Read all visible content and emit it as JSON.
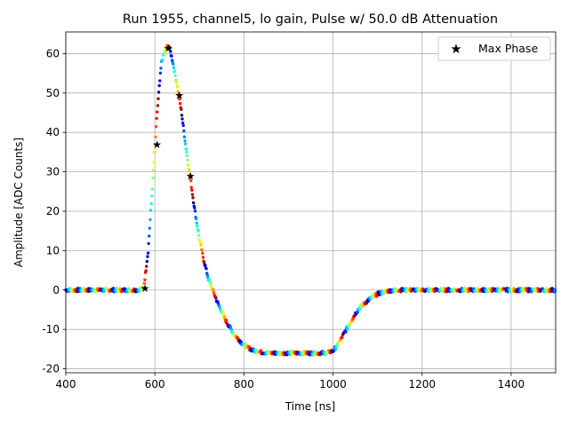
{
  "chart_data": {
    "type": "scatter",
    "title": "Run 1955, channel5, lo gain, Pulse w/ 50.0 dB Attenuation",
    "xlabel": "Time [ns]",
    "ylabel": "Amplitude [ADC Counts]",
    "xlim": [
      400,
      1500
    ],
    "ylim": [
      -21,
      65.5
    ],
    "xticks": [
      400,
      600,
      800,
      1000,
      1200,
      1400
    ],
    "yticks": [
      -20,
      -10,
      0,
      10,
      20,
      30,
      40,
      50,
      60
    ],
    "grid": true,
    "colormap": "jet",
    "legend": {
      "position": "top-right",
      "entries": [
        "Max Phase"
      ]
    },
    "pulse_samples": {
      "x": [
        400,
        420,
        440,
        460,
        480,
        500,
        520,
        540,
        560,
        575,
        585,
        595,
        605,
        615,
        625,
        632,
        640,
        650,
        660,
        670,
        680,
        690,
        700,
        710,
        720,
        730,
        740,
        760,
        780,
        800,
        820,
        840,
        860,
        880,
        900,
        920,
        940,
        960,
        980,
        1000,
        1010,
        1020,
        1030,
        1040,
        1050,
        1060,
        1080,
        1100,
        1120,
        1140,
        1160,
        1180,
        1200,
        1250,
        1300,
        1350,
        1400,
        1450,
        1500
      ],
      "y": [
        0,
        0,
        0,
        0,
        0,
        0,
        0,
        0,
        0,
        0.5,
        10,
        27,
        45,
        58,
        61.5,
        62,
        58,
        52,
        45,
        36,
        28,
        20,
        13,
        7.5,
        3,
        0,
        -3,
        -8,
        -11.5,
        -14,
        -15.3,
        -15.8,
        -16,
        -16,
        -16,
        -16,
        -16,
        -16,
        -16,
        -15.5,
        -14,
        -12,
        -10,
        -8,
        -6,
        -4.5,
        -2.5,
        -1,
        -0.3,
        0,
        0,
        0,
        0,
        0,
        0,
        0,
        0,
        0,
        0
      ]
    },
    "max_phase": {
      "name": "Max Phase",
      "x": [
        578,
        605,
        630,
        655,
        680
      ],
      "y": [
        0.5,
        37,
        61.5,
        49.5,
        29
      ]
    }
  }
}
